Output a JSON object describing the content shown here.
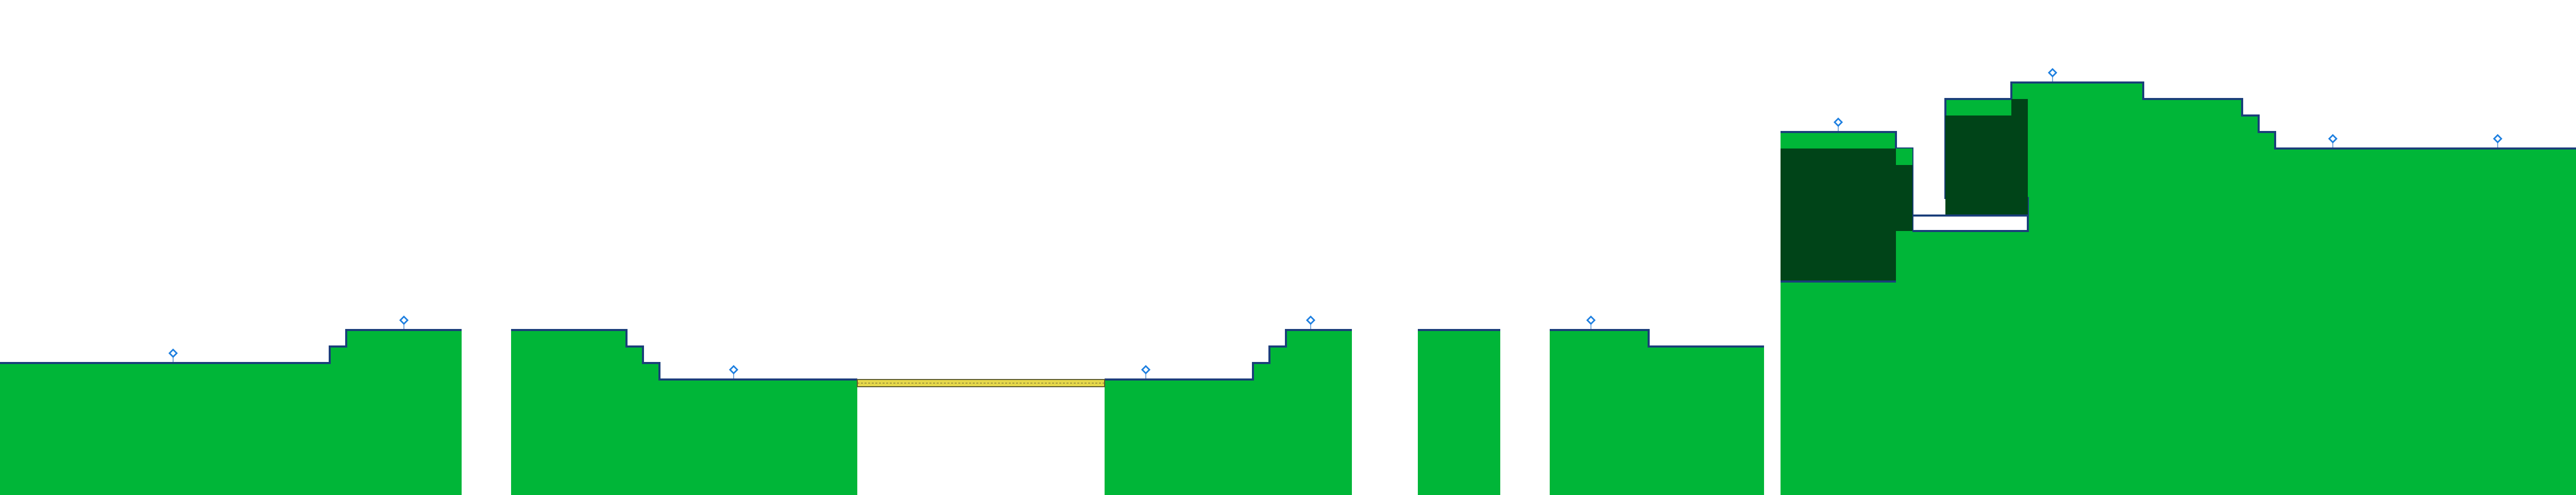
{
  "level": {
    "background_color": "#ffffff",
    "colors": {
      "ground": "#00b638",
      "ground_dark": "#004418",
      "edge": "#1a3e7a",
      "bridge": "#e6d84a",
      "bridge_edge": "#5c5a2e",
      "marker": "#1d7fe0",
      "marker_stem": "#7aa7d8"
    },
    "terrain": [
      {
        "name": "ground-section-1",
        "kind": "solid"
      },
      {
        "name": "ground-section-2",
        "kind": "solid"
      },
      {
        "name": "ground-section-3",
        "kind": "solid"
      },
      {
        "name": "ground-section-4",
        "kind": "solid"
      },
      {
        "name": "ground-section-5",
        "kind": "solid"
      },
      {
        "name": "ground-section-6",
        "kind": "solid"
      },
      {
        "name": "hill-section",
        "kind": "solid"
      }
    ],
    "dark_blocks": [
      {
        "name": "dark-block-1"
      },
      {
        "name": "dark-block-2"
      }
    ],
    "bridges": [
      {
        "name": "bridge-1"
      }
    ],
    "markers": [
      {
        "name": "marker-1"
      },
      {
        "name": "marker-2"
      },
      {
        "name": "marker-3"
      },
      {
        "name": "marker-4"
      },
      {
        "name": "marker-5"
      },
      {
        "name": "marker-6"
      },
      {
        "name": "marker-7"
      },
      {
        "name": "marker-8"
      },
      {
        "name": "marker-9"
      },
      {
        "name": "marker-10"
      }
    ],
    "marker_icon": "diamond-marker-icon"
  }
}
